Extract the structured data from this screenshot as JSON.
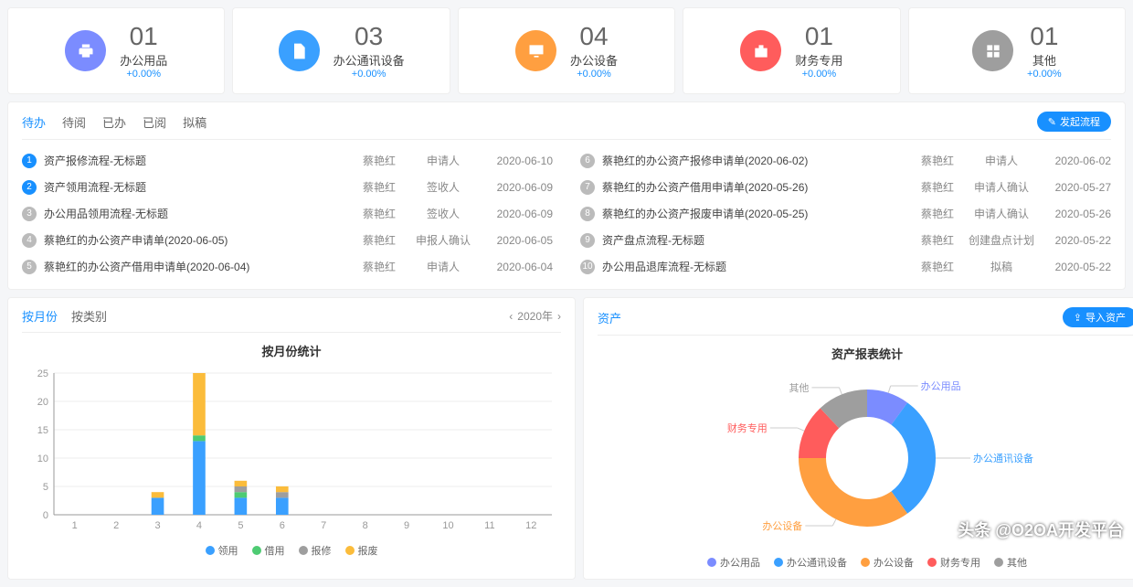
{
  "stats": [
    {
      "num": "01",
      "label": "办公用品",
      "pct": "+0.00%",
      "icon_bg": "#7b8cff",
      "icon": "printer"
    },
    {
      "num": "03",
      "label": "办公通讯设备",
      "pct": "+0.00%",
      "icon_bg": "#3aa0ff",
      "icon": "doc"
    },
    {
      "num": "04",
      "label": "办公设备",
      "pct": "+0.00%",
      "icon_bg": "#ff9f40",
      "icon": "monitor"
    },
    {
      "num": "01",
      "label": "财务专用",
      "pct": "+0.00%",
      "icon_bg": "#ff5c5c",
      "icon": "briefcase"
    },
    {
      "num": "01",
      "label": "其他",
      "pct": "+0.00%",
      "icon_bg": "#9e9e9e",
      "icon": "grid"
    }
  ],
  "tabs": [
    "待办",
    "待阅",
    "已办",
    "已阅",
    "拟稿"
  ],
  "active_tab": 0,
  "launch_btn": "发起流程",
  "tasks_left": [
    {
      "n": 1,
      "color": "#1890ff",
      "title": "资产报修流程-无标题",
      "person": "蔡艳红",
      "role": "申请人",
      "date": "2020-06-10"
    },
    {
      "n": 2,
      "color": "#1890ff",
      "title": "资产领用流程-无标题",
      "person": "蔡艳红",
      "role": "签收人",
      "date": "2020-06-09"
    },
    {
      "n": 3,
      "color": "#bbbbbb",
      "title": "办公用品领用流程-无标题",
      "person": "蔡艳红",
      "role": "签收人",
      "date": "2020-06-09"
    },
    {
      "n": 4,
      "color": "#bbbbbb",
      "title": "蔡艳红的办公资产申请单(2020-06-05)",
      "person": "蔡艳红",
      "role": "申报人确认",
      "date": "2020-06-05"
    },
    {
      "n": 5,
      "color": "#bbbbbb",
      "title": "蔡艳红的办公资产借用申请单(2020-06-04)",
      "person": "蔡艳红",
      "role": "申请人",
      "date": "2020-06-04"
    }
  ],
  "tasks_right": [
    {
      "n": 6,
      "color": "#bbbbbb",
      "title": "蔡艳红的办公资产报修申请单(2020-06-02)",
      "person": "蔡艳红",
      "role": "申请人",
      "date": "2020-06-02"
    },
    {
      "n": 7,
      "color": "#bbbbbb",
      "title": "蔡艳红的办公资产借用申请单(2020-05-26)",
      "person": "蔡艳红",
      "role": "申请人确认",
      "date": "2020-05-27"
    },
    {
      "n": 8,
      "color": "#bbbbbb",
      "title": "蔡艳红的办公资产报废申请单(2020-05-25)",
      "person": "蔡艳红",
      "role": "申请人确认",
      "date": "2020-05-26"
    },
    {
      "n": 9,
      "color": "#bbbbbb",
      "title": "资产盘点流程-无标题",
      "person": "蔡艳红",
      "role": "创建盘点计划",
      "date": "2020-05-22"
    },
    {
      "n": 10,
      "color": "#bbbbbb",
      "title": "办公用品退库流程-无标题",
      "person": "蔡艳红",
      "role": "拟稿",
      "date": "2020-05-22"
    }
  ],
  "bar_chart": {
    "tabs": [
      "按月份",
      "按类别"
    ],
    "active_tab": 0,
    "year": "2020年",
    "title": "按月份统计",
    "type": "stacked-bar",
    "categories": [
      "1",
      "2",
      "3",
      "4",
      "5",
      "6",
      "7",
      "8",
      "9",
      "10",
      "11",
      "12"
    ],
    "ylim": [
      0,
      25
    ],
    "ytick_step": 5,
    "series": [
      {
        "name": "领用",
        "color": "#3aa0ff",
        "data": [
          0,
          0,
          3,
          13,
          3,
          3,
          0,
          0,
          0,
          0,
          0,
          0
        ]
      },
      {
        "name": "借用",
        "color": "#4ecb73",
        "data": [
          0,
          0,
          0,
          1,
          1,
          0,
          0,
          0,
          0,
          0,
          0,
          0
        ]
      },
      {
        "name": "报修",
        "color": "#9e9e9e",
        "data": [
          0,
          0,
          0,
          0,
          1,
          1,
          0,
          0,
          0,
          0,
          0,
          0
        ]
      },
      {
        "name": "报废",
        "color": "#fbbc3b",
        "data": [
          0,
          0,
          1,
          11,
          1,
          1,
          0,
          0,
          0,
          0,
          0,
          0
        ]
      }
    ],
    "grid_color": "#eeeeee",
    "axis_color": "#999999",
    "bar_width": 0.3,
    "label_fontsize": 11
  },
  "donut_chart": {
    "header": "资产",
    "import_btn": "导入资产",
    "title": "资产报表统计",
    "type": "donut",
    "slices": [
      {
        "name": "办公用品",
        "value": 10,
        "color": "#7b8cff"
      },
      {
        "name": "办公通讯设备",
        "value": 30,
        "color": "#3aa0ff"
      },
      {
        "name": "办公设备",
        "value": 35,
        "color": "#ff9f40"
      },
      {
        "name": "财务专用",
        "value": 13,
        "color": "#ff5c5c"
      },
      {
        "name": "其他",
        "value": 12,
        "color": "#9e9e9e"
      }
    ],
    "inner_radius": 0.6,
    "outer_radius": 1.0,
    "label_fontsize": 11,
    "label_color": "#666666",
    "legend_items": [
      "办公用品",
      "办公通讯设备",
      "办公设备",
      "财务专用",
      "其他"
    ]
  },
  "watermark": "头条 @O2OA开发平台"
}
